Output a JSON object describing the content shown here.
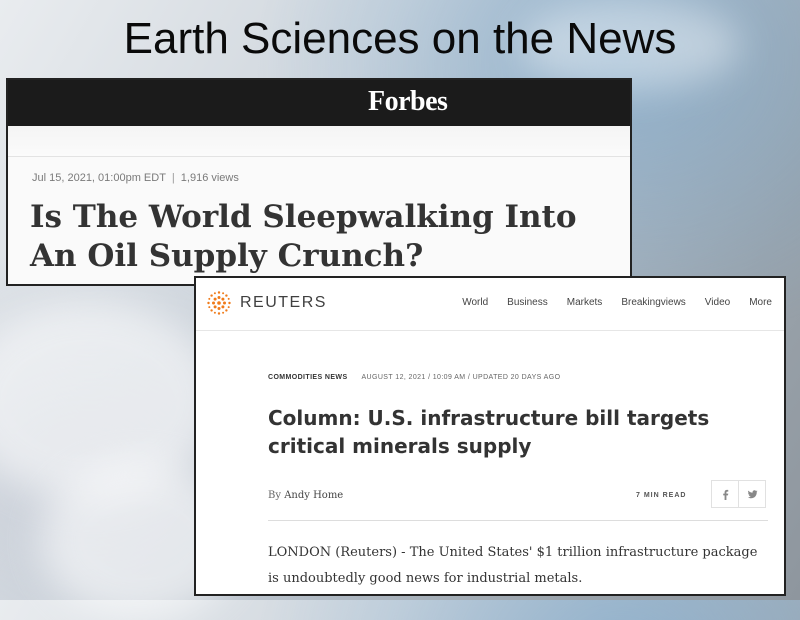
{
  "slide": {
    "title": "Earth Sciences on the News"
  },
  "forbes": {
    "logo": "Forbes",
    "date": "Jul 15, 2021, 01:00pm EDT",
    "separator": "|",
    "views": "1,916 views",
    "headline": "Is The World Sleepwalking Into An Oil Supply Crunch?"
  },
  "reuters": {
    "wordmark": "REUTERS",
    "nav": [
      "World",
      "Business",
      "Markets",
      "Breakingviews",
      "Video",
      "More"
    ],
    "kicker": "COMMODITIES NEWS",
    "dateline": "AUGUST 12, 2021 / 10:09 AM / UPDATED 20 DAYS AGO",
    "headline": "Column: U.S. infrastructure bill targets critical minerals supply",
    "byline_prefix": "By",
    "author": "Andy Home",
    "read_time": "7 MIN READ",
    "share_icons": [
      "facebook-icon",
      "twitter-icon"
    ],
    "body": "LONDON (Reuters) - The United States' $1 trillion infrastructure package is undoubtedly good news for industrial metals."
  },
  "colors": {
    "forbes_bar": "#1b1b1b",
    "reuters_orange": "#f07b1a"
  }
}
